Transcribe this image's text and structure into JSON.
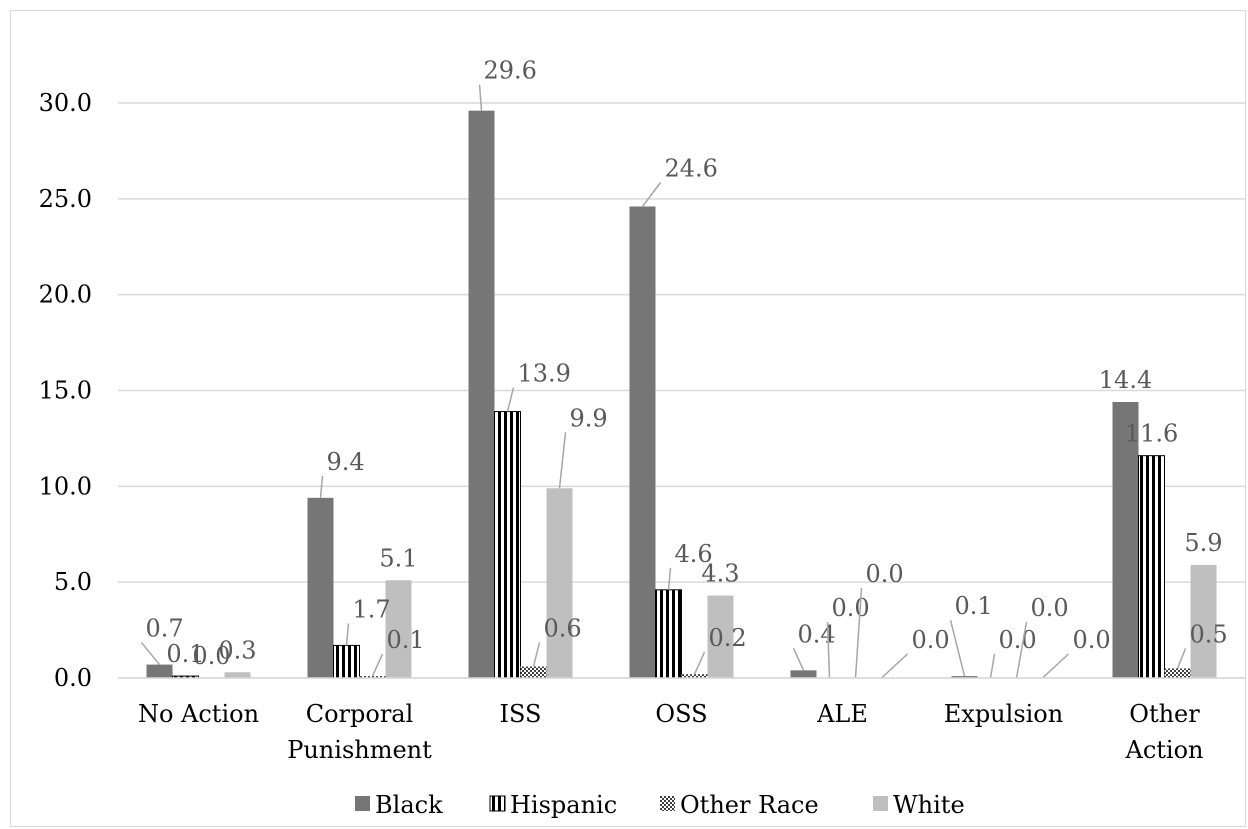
{
  "chart_data": {
    "type": "bar",
    "title": "",
    "xlabel": "",
    "ylabel": "",
    "ylim": [
      0,
      30
    ],
    "yticks": [
      "0.0",
      "5.0",
      "10.0",
      "15.0",
      "20.0",
      "25.0",
      "30.0"
    ],
    "grid": true,
    "legend_position": "bottom",
    "categories": [
      [
        "No Action"
      ],
      [
        "Corporal",
        "Punishment"
      ],
      [
        "ISS"
      ],
      [
        "OSS"
      ],
      [
        "ALE"
      ],
      [
        "Expulsion"
      ],
      [
        "Other",
        "Action"
      ]
    ],
    "series": [
      {
        "name": "Black",
        "color": "#767676",
        "pattern": "solid",
        "values": [
          0.7,
          9.4,
          29.6,
          24.6,
          0.4,
          0.1,
          14.4
        ],
        "labels": [
          "0.7",
          "9.4",
          "29.6",
          "24.6",
          "0.4",
          "0.1",
          "14.4"
        ]
      },
      {
        "name": "Hispanic",
        "color": "#000000",
        "pattern": "vertical-stripes",
        "values": [
          0.1,
          1.7,
          13.9,
          4.6,
          0.0,
          0.0,
          11.6
        ],
        "labels": [
          "0.1",
          "1.7",
          "13.9",
          "4.6",
          "0.0",
          "0.0",
          "11.6"
        ]
      },
      {
        "name": "Other Race",
        "color": "#404040",
        "pattern": "checker",
        "values": [
          0.0,
          0.1,
          0.6,
          0.2,
          0.0,
          0.0,
          0.5
        ],
        "labels": [
          "0.0",
          "0.1",
          "0.6",
          "0.2",
          "0.0",
          "0.0",
          "0.5"
        ]
      },
      {
        "name": "White",
        "color": "#bfbfbf",
        "pattern": "solid",
        "values": [
          0.3,
          5.1,
          9.9,
          4.3,
          0.0,
          0.0,
          5.9
        ],
        "labels": [
          "0.3",
          "5.1",
          "9.9",
          "4.3",
          "0.0",
          "0.0",
          "5.9"
        ]
      }
    ]
  }
}
